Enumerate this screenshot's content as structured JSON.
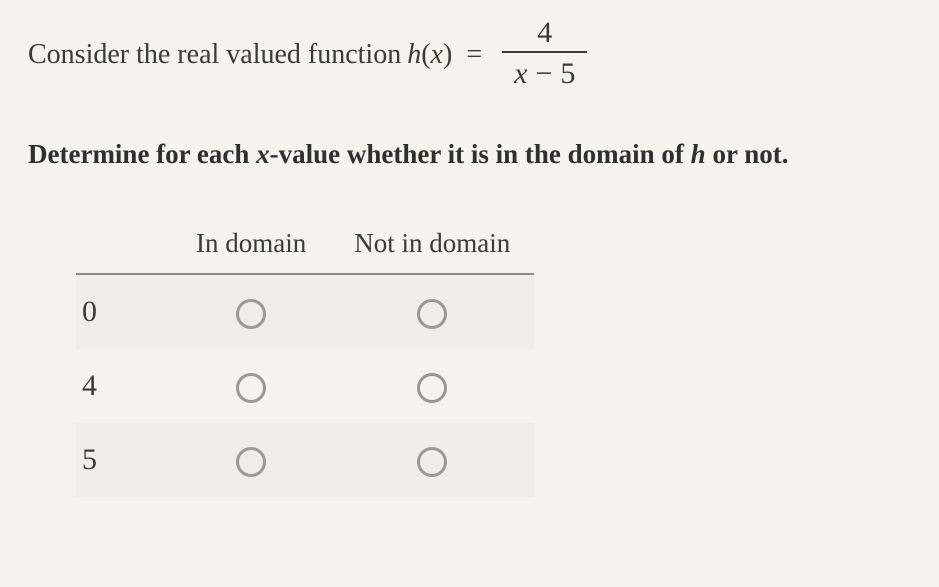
{
  "intro_prefix": "Consider the real valued function ",
  "function_name": "h",
  "function_arg": "x",
  "equals": "=",
  "fraction": {
    "numerator": "4",
    "denominator_lhs": "x",
    "denominator_op": "−",
    "denominator_rhs": "5"
  },
  "instruction_prefix": "Determine for each ",
  "instruction_var": "x",
  "instruction_mid": "-value whether it is in the domain of ",
  "instruction_fn": "h",
  "instruction_suffix": " or not.",
  "columns": {
    "col1": "In domain",
    "col2": "Not in domain"
  },
  "rows": [
    {
      "label": "0"
    },
    {
      "label": "4"
    },
    {
      "label": "5"
    }
  ],
  "colors": {
    "background": "#f6f3ee",
    "text": "#3a3a3a",
    "rule": "#8f8b84",
    "radio_border": "#9b9892"
  }
}
